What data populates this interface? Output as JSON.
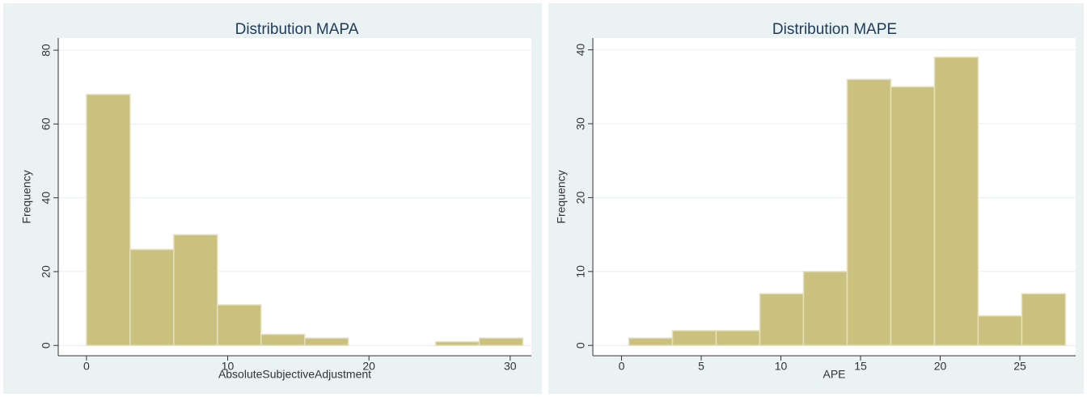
{
  "chart_data": [
    {
      "type": "histogram",
      "title": "Distribution MAPA",
      "x_label": "AbsoluteSubjectiveAdjustment",
      "y_label": "Frequency",
      "bins": [
        0,
        3.09,
        6.18,
        9.27,
        12.36,
        15.45,
        18.54,
        21.63,
        24.72,
        27.81,
        30.9
      ],
      "values": [
        68,
        26,
        30,
        11,
        3,
        2,
        0,
        0,
        1,
        2
      ],
      "color": "#cbc17f",
      "xlim": [
        -2,
        31.5
      ],
      "xticks": [
        0,
        10,
        20,
        30
      ],
      "ylim": [
        -2.8,
        83.3
      ],
      "yticks": [
        0,
        20,
        40,
        60,
        80
      ],
      "grid": true
    },
    {
      "type": "histogram",
      "title": "Distribution MAPE",
      "x_label": "APE",
      "y_label": "Frequency",
      "bins": [
        0.46,
        3.2,
        5.94,
        8.68,
        11.42,
        14.16,
        16.9,
        19.64,
        22.38,
        25.12,
        27.86
      ],
      "values": [
        1,
        2,
        2,
        7,
        10,
        36,
        35,
        39,
        4,
        7
      ],
      "color": "#cbc17f",
      "xlim": [
        -1.8,
        28.5
      ],
      "xticks": [
        0,
        5,
        10,
        15,
        20,
        25
      ],
      "ylim": [
        -1.4,
        41.6
      ],
      "yticks": [
        0,
        10,
        20,
        30,
        40
      ],
      "grid": true
    }
  ]
}
